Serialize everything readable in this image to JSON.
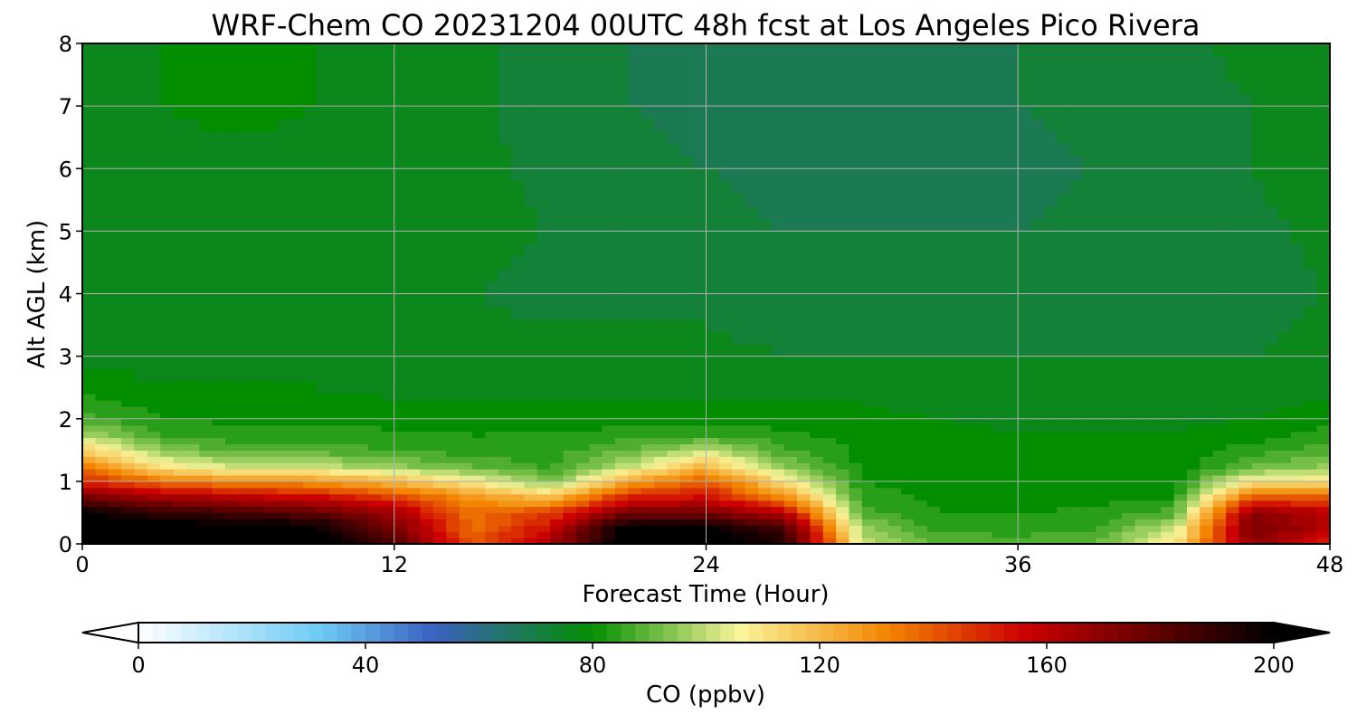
{
  "chart_data": {
    "type": "heatmap",
    "title": "WRF-Chem CO  20231204 00UTC 48h fcst at Los Angeles Pico Rivera",
    "xlabel": "Forecast Time (Hour)",
    "ylabel": "Alt AGL (km)",
    "xlim": [
      0,
      48
    ],
    "ylim": [
      0,
      8
    ],
    "xticks": [
      "0",
      "12",
      "24",
      "36",
      "48"
    ],
    "yticks": [
      "0",
      "1",
      "2",
      "3",
      "4",
      "5",
      "6",
      "7",
      "8"
    ],
    "grid": true,
    "x": [
      0,
      3,
      6,
      9,
      12,
      15,
      18,
      21,
      24,
      27,
      30,
      33,
      36,
      39,
      42,
      45,
      48
    ],
    "y": [
      0,
      0.25,
      0.5,
      0.75,
      1,
      1.25,
      1.5,
      1.75,
      2,
      2.5,
      3,
      4,
      5,
      6,
      7,
      8
    ],
    "z": [
      [
        205,
        205,
        205,
        205,
        185,
        140,
        165,
        205,
        205,
        195,
        100,
        90,
        88,
        90,
        110,
        170,
        150
      ],
      [
        205,
        205,
        205,
        200,
        175,
        135,
        155,
        205,
        200,
        185,
        95,
        85,
        84,
        86,
        100,
        175,
        160
      ],
      [
        200,
        190,
        185,
        180,
        165,
        135,
        145,
        175,
        175,
        160,
        88,
        82,
        82,
        83,
        88,
        170,
        160
      ],
      [
        175,
        165,
        160,
        155,
        145,
        128,
        118,
        150,
        155,
        130,
        84,
        81,
        80,
        80,
        82,
        140,
        140
      ],
      [
        150,
        135,
        130,
        128,
        120,
        108,
        92,
        125,
        140,
        110,
        82,
        80,
        80,
        79,
        80,
        108,
        110
      ],
      [
        135,
        110,
        100,
        100,
        95,
        90,
        85,
        100,
        120,
        95,
        81,
        80,
        79,
        79,
        79,
        90,
        95
      ],
      [
        115,
        95,
        88,
        88,
        86,
        84,
        84,
        90,
        100,
        87,
        81,
        80,
        79,
        79,
        79,
        84,
        88
      ],
      [
        98,
        86,
        84,
        84,
        83,
        82,
        82,
        84,
        85,
        83,
        80,
        79,
        78,
        78,
        78,
        80,
        84
      ],
      [
        88,
        82,
        81,
        81,
        80,
        80,
        80,
        80,
        80,
        80,
        79,
        78,
        77,
        77,
        77,
        78,
        80
      ],
      [
        80,
        79,
        78,
        78,
        77,
        77,
        77,
        77,
        77,
        77,
        77,
        76,
        76,
        76,
        76,
        76,
        77
      ],
      [
        76,
        76,
        75,
        75,
        75,
        75,
        75,
        75,
        75,
        74,
        74,
        74,
        74,
        74,
        74,
        74,
        75
      ],
      [
        75,
        74,
        74,
        74,
        74,
        74,
        73,
        73,
        73,
        72,
        72,
        72,
        72,
        72,
        73,
        73,
        74
      ],
      [
        75,
        75,
        75,
        75,
        75,
        75,
        74,
        72,
        71,
        70,
        70,
        70,
        70,
        71,
        72,
        73,
        75
      ],
      [
        76,
        77,
        77,
        77,
        76,
        75,
        73,
        71,
        70,
        69,
        69,
        69,
        69,
        70,
        72,
        74,
        76
      ],
      [
        77,
        78,
        79,
        78,
        77,
        75,
        72,
        70,
        69,
        69,
        69,
        69,
        70,
        71,
        72,
        74,
        76
      ],
      [
        77,
        78,
        78,
        78,
        77,
        75,
        72,
        70,
        69,
        70,
        70,
        70,
        70,
        71,
        73,
        75,
        77
      ]
    ],
    "colorbar": {
      "label": "CO  (ppbv)",
      "ticks": [
        "0",
        "40",
        "80",
        "120",
        "160",
        "200"
      ],
      "min": 0,
      "max": 200,
      "extend": "both",
      "colors": [
        "#ffffff",
        "#6ecbf5",
        "#3a60c0",
        "#038e00",
        "#f9f59a",
        "#f38500",
        "#cc0000",
        "#000000"
      ]
    }
  }
}
